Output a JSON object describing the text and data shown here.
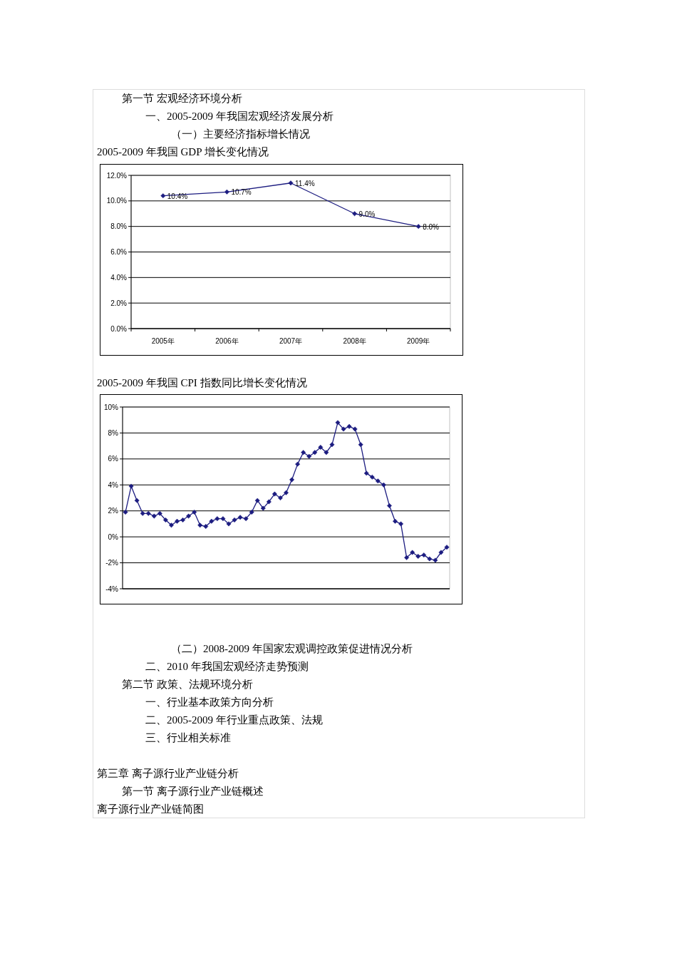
{
  "chart_data": [
    {
      "type": "line",
      "title": "2005-2009 年我国 GDP 增长变化情况",
      "annotations": [
        "第一节  宏观经济环境分析",
        "一、2005-2009 年我国宏观经济发展分析",
        "（一）主要经济指标增长情况"
      ],
      "categories": [
        "2005年",
        "2006年",
        "2007年",
        "2008年",
        "2009年"
      ],
      "values": [
        10.4,
        10.7,
        11.4,
        9.0,
        8.0
      ],
      "value_labels": [
        "10.4%",
        "10.7%",
        "11.4%",
        "9.0%",
        "8.0%"
      ],
      "color": "#1c1c80",
      "marker": "diamond",
      "ylim": [
        0,
        12
      ],
      "yticks": [
        {
          "value": 0,
          "label": "0.0%"
        },
        {
          "value": 2,
          "label": "2.0%"
        },
        {
          "value": 4,
          "label": "4.0%"
        },
        {
          "value": 6,
          "label": "6.0%"
        },
        {
          "value": 8,
          "label": "8.0%"
        },
        {
          "value": 10,
          "label": "10.0%"
        },
        {
          "value": 12,
          "label": "12.0%"
        }
      ],
      "grid": "y"
    },
    {
      "type": "line",
      "title": "2005-2009 年我国 CPI 指数同比增长变化情况",
      "annotations": [
        "（二）2008-2009 年国家宏观调控政策促进情况分析",
        "二、2010 年我国宏观经济走势预测",
        "第二节  政策、法规环境分析",
        "一、行业基本政策方向分析",
        "二、2005-2009 年行业重点政策、法规",
        "三、行业相关标准",
        "第三章  离子源行业产业链分析",
        "第一节  离子源行业产业链概述",
        "离子源行业产业链简图"
      ],
      "categories": [
        null,
        null,
        null,
        null,
        null,
        null,
        null,
        null,
        null,
        null,
        null,
        null,
        null,
        null,
        null,
        null,
        null,
        null,
        null,
        null,
        null,
        null,
        null,
        null,
        null,
        null,
        null,
        null,
        null,
        null,
        null,
        null,
        null,
        null,
        null,
        null,
        null,
        null,
        null,
        null,
        null,
        null,
        null,
        null,
        null,
        null,
        null,
        null,
        null,
        null,
        null,
        null,
        null,
        null,
        null,
        null,
        null
      ],
      "values": [
        1.9,
        3.9,
        2.8,
        1.8,
        1.8,
        1.6,
        1.8,
        1.3,
        0.9,
        1.2,
        1.3,
        1.6,
        1.9,
        0.9,
        0.8,
        1.2,
        1.4,
        1.4,
        1.0,
        1.3,
        1.5,
        1.4,
        1.9,
        2.8,
        2.2,
        2.7,
        3.3,
        3.0,
        3.4,
        4.4,
        5.6,
        6.5,
        6.2,
        6.5,
        6.9,
        6.5,
        7.1,
        8.8,
        8.3,
        8.5,
        8.3,
        7.1,
        4.9,
        4.6,
        4.3,
        4.0,
        2.4,
        1.2,
        1.0,
        -1.6,
        -1.2,
        -1.5,
        -1.4,
        -1.7,
        -1.8,
        -1.2,
        -0.8
      ],
      "color": "#1c1c80",
      "marker": "diamond",
      "ylim": [
        -4,
        10
      ],
      "yticks": [
        {
          "value": -4,
          "label": "-4%"
        },
        {
          "value": -2,
          "label": "-2%"
        },
        {
          "value": 0,
          "label": "0%"
        },
        {
          "value": 2,
          "label": "2%"
        },
        {
          "value": 4,
          "label": "4%"
        },
        {
          "value": 6,
          "label": "6%"
        },
        {
          "value": 8,
          "label": "8%"
        },
        {
          "value": 10,
          "label": "10%"
        }
      ],
      "grid": "y",
      "tick_labels": "y"
    }
  ]
}
